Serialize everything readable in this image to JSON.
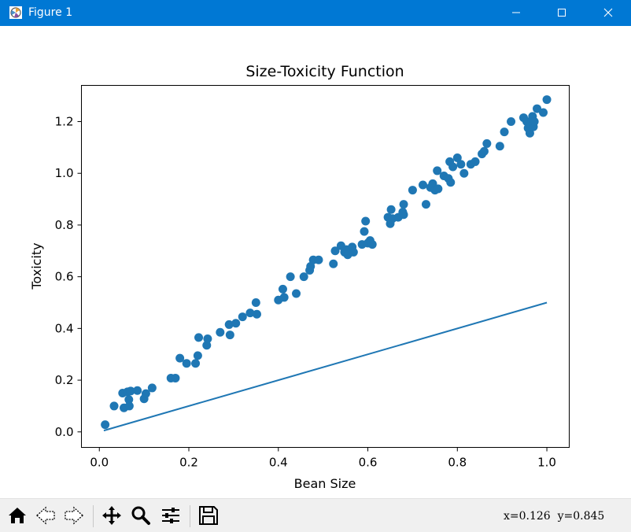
{
  "window": {
    "title": "Figure 1",
    "icons": [
      "matplotlib-figure-icon",
      "minimize-icon",
      "maximize-icon",
      "close-icon"
    ]
  },
  "toolbar": {
    "buttons": [
      "home-icon",
      "back-icon",
      "forward-icon",
      "pan-icon",
      "zoom-icon",
      "configure-subplots-icon",
      "save-icon"
    ],
    "coords": "x=0.126  y=0.845"
  },
  "colors": {
    "titlebar": "#0078d4",
    "series": "#1f77b4"
  },
  "chart_data": {
    "type": "scatter",
    "title": "Size-Toxicity Function",
    "xlabel": "Bean Size",
    "ylabel": "Toxicity",
    "xlim": [
      -0.04,
      1.05
    ],
    "ylim": [
      -0.06,
      1.34
    ],
    "xticks": [
      0.0,
      0.2,
      0.4,
      0.6,
      0.8,
      1.0
    ],
    "xtick_labels": [
      "0.0",
      "0.2",
      "0.4",
      "0.6",
      "0.8",
      "1.0"
    ],
    "yticks": [
      0.0,
      0.2,
      0.4,
      0.6,
      0.8,
      1.0,
      1.2
    ],
    "ytick_labels": [
      "0.0",
      "0.2",
      "0.4",
      "0.6",
      "0.8",
      "1.0",
      "1.2"
    ],
    "grid": false,
    "series": [
      {
        "kind": "scatter",
        "color": "#1f77b4",
        "points": [
          [
            0.013,
            0.028
          ],
          [
            0.033,
            0.1
          ],
          [
            0.052,
            0.15
          ],
          [
            0.055,
            0.093
          ],
          [
            0.063,
            0.155
          ],
          [
            0.066,
            0.125
          ],
          [
            0.067,
            0.1
          ],
          [
            0.07,
            0.158
          ],
          [
            0.085,
            0.16
          ],
          [
            0.1,
            0.128
          ],
          [
            0.104,
            0.148
          ],
          [
            0.118,
            0.17
          ],
          [
            0.16,
            0.208
          ],
          [
            0.17,
            0.208
          ],
          [
            0.18,
            0.285
          ],
          [
            0.195,
            0.265
          ],
          [
            0.215,
            0.265
          ],
          [
            0.22,
            0.295
          ],
          [
            0.222,
            0.365
          ],
          [
            0.24,
            0.335
          ],
          [
            0.242,
            0.36
          ],
          [
            0.27,
            0.385
          ],
          [
            0.29,
            0.415
          ],
          [
            0.292,
            0.375
          ],
          [
            0.305,
            0.42
          ],
          [
            0.32,
            0.445
          ],
          [
            0.337,
            0.46
          ],
          [
            0.35,
            0.5
          ],
          [
            0.352,
            0.455
          ],
          [
            0.4,
            0.51
          ],
          [
            0.41,
            0.552
          ],
          [
            0.413,
            0.52
          ],
          [
            0.427,
            0.6
          ],
          [
            0.44,
            0.535
          ],
          [
            0.457,
            0.6
          ],
          [
            0.47,
            0.625
          ],
          [
            0.472,
            0.64
          ],
          [
            0.478,
            0.665
          ],
          [
            0.49,
            0.665
          ],
          [
            0.523,
            0.65
          ],
          [
            0.527,
            0.7
          ],
          [
            0.54,
            0.72
          ],
          [
            0.548,
            0.695
          ],
          [
            0.552,
            0.705
          ],
          [
            0.555,
            0.685
          ],
          [
            0.565,
            0.715
          ],
          [
            0.568,
            0.695
          ],
          [
            0.587,
            0.725
          ],
          [
            0.592,
            0.775
          ],
          [
            0.595,
            0.815
          ],
          [
            0.6,
            0.73
          ],
          [
            0.605,
            0.74
          ],
          [
            0.61,
            0.725
          ],
          [
            0.645,
            0.83
          ],
          [
            0.65,
            0.805
          ],
          [
            0.652,
            0.86
          ],
          [
            0.655,
            0.825
          ],
          [
            0.668,
            0.83
          ],
          [
            0.678,
            0.85
          ],
          [
            0.68,
            0.84
          ],
          [
            0.68,
            0.88
          ],
          [
            0.7,
            0.935
          ],
          [
            0.723,
            0.955
          ],
          [
            0.73,
            0.88
          ],
          [
            0.74,
            0.945
          ],
          [
            0.745,
            0.96
          ],
          [
            0.75,
            0.935
          ],
          [
            0.755,
            1.01
          ],
          [
            0.757,
            0.94
          ],
          [
            0.77,
            0.99
          ],
          [
            0.78,
            0.98
          ],
          [
            0.783,
            1.045
          ],
          [
            0.785,
            0.965
          ],
          [
            0.79,
            1.025
          ],
          [
            0.8,
            1.06
          ],
          [
            0.808,
            1.035
          ],
          [
            0.815,
            1.0
          ],
          [
            0.83,
            1.035
          ],
          [
            0.84,
            1.045
          ],
          [
            0.855,
            1.075
          ],
          [
            0.86,
            1.085
          ],
          [
            0.866,
            1.115
          ],
          [
            0.895,
            1.105
          ],
          [
            0.905,
            1.16
          ],
          [
            0.92,
            1.2
          ],
          [
            0.948,
            1.215
          ],
          [
            0.955,
            1.2
          ],
          [
            0.958,
            1.175
          ],
          [
            0.962,
            1.155
          ],
          [
            0.964,
            1.19
          ],
          [
            0.966,
            1.205
          ],
          [
            0.968,
            1.22
          ],
          [
            0.97,
            1.18
          ],
          [
            0.972,
            1.2
          ],
          [
            0.978,
            1.25
          ],
          [
            0.992,
            1.235
          ],
          [
            1.0,
            1.285
          ]
        ]
      },
      {
        "kind": "line",
        "color": "#1f77b4",
        "x": [
          0.01,
          1.0
        ],
        "y": [
          0.005,
          0.5
        ]
      }
    ]
  }
}
